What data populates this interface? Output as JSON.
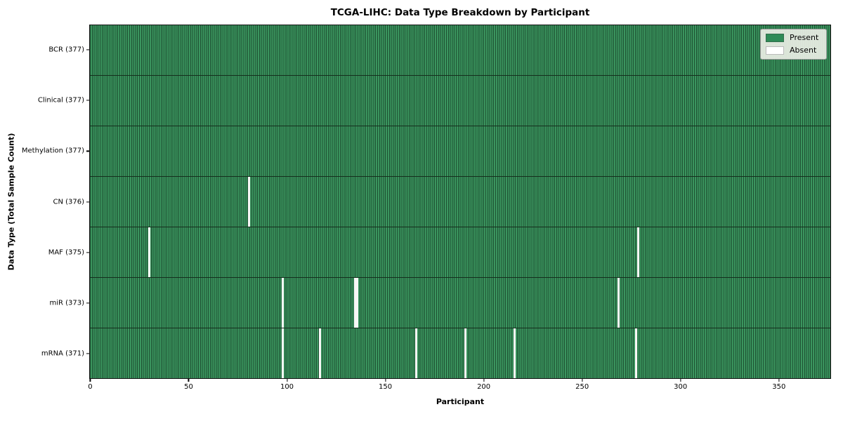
{
  "chart_data": {
    "type": "heatmap",
    "title": "TCGA-LIHC: Data Type Breakdown by Participant",
    "xlabel": "Participant",
    "ylabel": "Data Type (Total Sample Count)",
    "x_ticks": [
      0,
      50,
      100,
      150,
      200,
      250,
      300,
      350
    ],
    "x_range": [
      0,
      377
    ],
    "n_participants": 377,
    "grid": false,
    "legend_position": "upper right",
    "colors": {
      "present": "#2e8b57",
      "present_fill": "#3b965f",
      "cell_edge": "#1d4f31",
      "absent": "#ffffff",
      "row_divider": "#152e1d",
      "legend_bg": "#eaeee5"
    },
    "legend": [
      {
        "label": "Present",
        "color": "#2e8b57"
      },
      {
        "label": "Absent",
        "color": "#ffffff"
      }
    ],
    "rows": [
      {
        "label": "BCR (377)",
        "name": "BCR",
        "present_count": 377,
        "absent_participants": []
      },
      {
        "label": "Clinical (377)",
        "name": "Clinical",
        "present_count": 377,
        "absent_participants": []
      },
      {
        "label": "Methylation (377)",
        "name": "Methylation",
        "present_count": 377,
        "absent_participants": []
      },
      {
        "label": "CN (376)",
        "name": "CN",
        "present_count": 376,
        "absent_participants": [
          81
        ]
      },
      {
        "label": "MAF (375)",
        "name": "MAF",
        "present_count": 375,
        "absent_participants": [
          30,
          279
        ]
      },
      {
        "label": "miR (373)",
        "name": "miR",
        "present_count": 373,
        "absent_participants": [
          98,
          135,
          136,
          269
        ]
      },
      {
        "label": "mRNA (371)",
        "name": "mRNA",
        "present_count": 371,
        "absent_participants": [
          98,
          117,
          166,
          191,
          216,
          278
        ]
      }
    ]
  }
}
